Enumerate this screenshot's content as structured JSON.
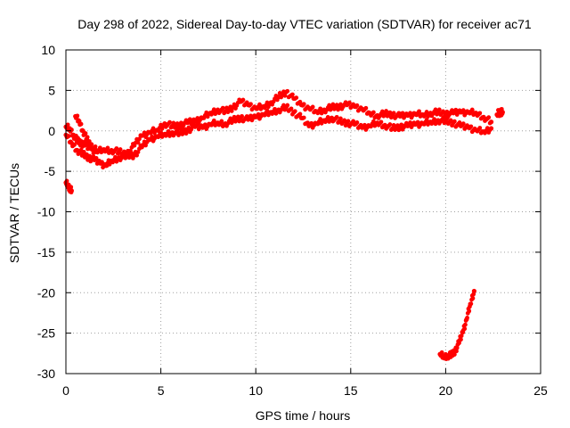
{
  "chart_data": {
    "type": "scatter",
    "title": "Day 298 of 2022, Sidereal Day-to-day VTEC variation (SDTVAR) for receiver ac71",
    "xlabel": "GPS time / hours",
    "ylabel": "SDTVAR / TECUs",
    "xlim": [
      0,
      25
    ],
    "ylim": [
      -30,
      10
    ],
    "xticks": [
      0,
      5,
      10,
      15,
      20,
      25
    ],
    "yticks": [
      10,
      5,
      0,
      -5,
      -10,
      -15,
      -20,
      -25,
      -30
    ],
    "grid": true,
    "series_color": "#ff0000",
    "series": [
      {
        "name": "band-upper",
        "values": [
          [
            0.0,
            0.5
          ],
          [
            0.2,
            0.3
          ],
          [
            0.4,
            -0.5
          ],
          [
            0.6,
            -1.2
          ],
          [
            0.8,
            -1.5
          ],
          [
            1.0,
            -1.8
          ],
          [
            1.3,
            -2.2
          ],
          [
            1.6,
            -2.6
          ],
          [
            2.0,
            -2.3
          ],
          [
            2.4,
            -2.4
          ],
          [
            2.8,
            -2.6
          ],
          [
            3.2,
            -2.9
          ],
          [
            3.6,
            -1.8
          ],
          [
            4.0,
            -0.6
          ],
          [
            4.4,
            -0.2
          ],
          [
            4.8,
            0.1
          ],
          [
            5.2,
            0.9
          ],
          [
            5.6,
            0.6
          ],
          [
            6.0,
            0.7
          ],
          [
            6.4,
            1.0
          ],
          [
            6.8,
            1.2
          ],
          [
            7.2,
            1.6
          ],
          [
            7.6,
            2.2
          ],
          [
            8.0,
            2.6
          ],
          [
            8.4,
            2.4
          ],
          [
            8.8,
            2.9
          ],
          [
            9.2,
            3.6
          ],
          [
            9.6,
            3.2
          ],
          [
            10.0,
            2.8
          ],
          [
            10.4,
            3.0
          ],
          [
            10.8,
            3.5
          ],
          [
            11.2,
            4.2
          ],
          [
            11.6,
            4.8
          ],
          [
            12.0,
            4.0
          ],
          [
            12.4,
            3.2
          ],
          [
            12.8,
            2.8
          ],
          [
            13.2,
            2.4
          ],
          [
            13.6,
            2.6
          ],
          [
            14.0,
            2.9
          ],
          [
            14.4,
            3.0
          ],
          [
            14.8,
            3.2
          ],
          [
            15.2,
            3.0
          ],
          [
            15.6,
            2.7
          ],
          [
            16.0,
            2.2
          ],
          [
            16.4,
            1.9
          ],
          [
            16.8,
            2.1
          ],
          [
            17.2,
            2.0
          ],
          [
            17.6,
            1.8
          ],
          [
            18.0,
            1.9
          ],
          [
            18.4,
            2.1
          ],
          [
            18.8,
            2.0
          ],
          [
            19.2,
            2.2
          ],
          [
            19.6,
            2.3
          ],
          [
            20.0,
            2.1
          ],
          [
            20.4,
            2.2
          ],
          [
            20.8,
            2.3
          ],
          [
            21.2,
            2.3
          ],
          [
            21.6,
            2.2
          ],
          [
            22.0,
            1.7
          ],
          [
            22.4,
            1.1
          ]
        ]
      },
      {
        "name": "band-lower",
        "values": [
          [
            0.0,
            -0.5
          ],
          [
            0.3,
            -1.5
          ],
          [
            0.6,
            -2.4
          ],
          [
            0.9,
            -2.9
          ],
          [
            1.2,
            -3.3
          ],
          [
            1.5,
            -3.6
          ],
          [
            1.8,
            -4.0
          ],
          [
            2.1,
            -4.3
          ],
          [
            2.4,
            -3.7
          ],
          [
            2.8,
            -3.3
          ],
          [
            3.2,
            -3.1
          ],
          [
            3.6,
            -3.0
          ],
          [
            4.0,
            -2.0
          ],
          [
            4.4,
            -1.1
          ],
          [
            4.8,
            -0.7
          ],
          [
            5.2,
            -0.4
          ],
          [
            5.6,
            -0.2
          ],
          [
            6.0,
            -0.3
          ],
          [
            6.4,
            0.1
          ],
          [
            6.8,
            0.5
          ],
          [
            7.2,
            0.4
          ],
          [
            7.6,
            0.8
          ],
          [
            8.0,
            1.0
          ],
          [
            8.4,
            0.9
          ],
          [
            8.8,
            1.3
          ],
          [
            9.2,
            1.6
          ],
          [
            9.6,
            1.4
          ],
          [
            10.0,
            1.7
          ],
          [
            10.4,
            2.0
          ],
          [
            10.8,
            2.3
          ],
          [
            11.2,
            2.6
          ],
          [
            11.6,
            2.9
          ],
          [
            12.0,
            2.3
          ],
          [
            12.4,
            1.6
          ],
          [
            12.8,
            0.6
          ],
          [
            13.2,
            0.9
          ],
          [
            13.6,
            1.3
          ],
          [
            14.0,
            1.6
          ],
          [
            14.4,
            1.2
          ],
          [
            14.8,
            1.0
          ],
          [
            15.2,
            0.8
          ],
          [
            15.6,
            0.4
          ],
          [
            16.0,
            0.6
          ],
          [
            16.4,
            1.0
          ],
          [
            16.8,
            0.7
          ],
          [
            17.2,
            0.3
          ],
          [
            17.6,
            0.5
          ],
          [
            18.0,
            0.6
          ],
          [
            18.4,
            0.8
          ],
          [
            18.8,
            0.9
          ],
          [
            19.2,
            1.1
          ],
          [
            19.6,
            1.3
          ],
          [
            20.0,
            1.2
          ],
          [
            20.4,
            1.0
          ],
          [
            20.8,
            0.6
          ],
          [
            21.2,
            0.4
          ],
          [
            21.6,
            0.1
          ],
          [
            22.0,
            -0.1
          ],
          [
            22.4,
            0.3
          ]
        ]
      },
      {
        "name": "arc-early",
        "values": [
          [
            0.5,
            1.8
          ],
          [
            0.7,
            1.2
          ],
          [
            0.9,
            0.0
          ],
          [
            1.1,
            -1.0
          ],
          [
            1.3,
            -1.8
          ],
          [
            1.6,
            -2.4
          ]
        ]
      },
      {
        "name": "isolated-start",
        "values": [
          [
            0.0,
            -6.4
          ],
          [
            0.1,
            -6.7
          ],
          [
            0.2,
            -7.1
          ],
          [
            0.3,
            -7.4
          ]
        ]
      },
      {
        "name": "late-tail",
        "values": [
          [
            22.8,
            1.9
          ],
          [
            23.0,
            2.3
          ],
          [
            22.9,
            2.6
          ],
          [
            22.7,
            2.0
          ]
        ]
      },
      {
        "name": "rising-end",
        "values": [
          [
            19.7,
            -27.6
          ],
          [
            19.9,
            -27.9
          ],
          [
            20.1,
            -27.8
          ],
          [
            20.3,
            -27.7
          ],
          [
            20.5,
            -27.2
          ],
          [
            20.7,
            -26.2
          ],
          [
            20.9,
            -24.9
          ],
          [
            21.1,
            -23.3
          ],
          [
            21.3,
            -21.4
          ],
          [
            21.5,
            -19.8
          ]
        ]
      }
    ]
  }
}
